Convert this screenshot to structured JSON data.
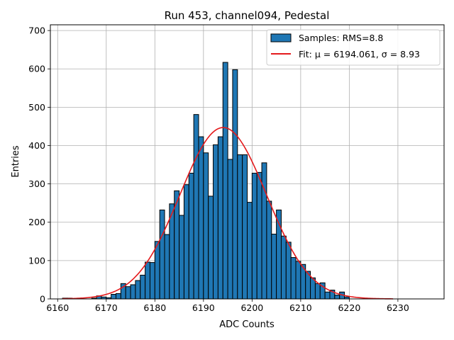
{
  "chart_data": {
    "type": "bar",
    "title": "Run 453, channel094, Pedestal",
    "xlabel": "ADC Counts",
    "ylabel": "Entries",
    "xlim": [
      6158.5,
      6239.5
    ],
    "ylim": [
      0,
      715
    ],
    "xticks": [
      6160,
      6170,
      6180,
      6190,
      6200,
      6210,
      6220,
      6230
    ],
    "yticks": [
      0,
      100,
      200,
      300,
      400,
      500,
      600,
      700
    ],
    "grid": true,
    "bin_width": 1,
    "bar_color": "#1f77b4",
    "fit_color": "#e41a1c",
    "legend": {
      "position": "top-right",
      "hist_label": "Samples: RMS=8.8",
      "fit_label": "Fit: μ = 6194.061, σ = 8.93"
    },
    "series": [
      {
        "name": "Samples: RMS=8.8",
        "type": "histogram",
        "bin_starts": [
          6161,
          6162,
          6163,
          6164,
          6165,
          6166,
          6167,
          6168,
          6169,
          6170,
          6171,
          6172,
          6173,
          6174,
          6175,
          6176,
          6177,
          6178,
          6179,
          6180,
          6181,
          6182,
          6183,
          6184,
          6185,
          6186,
          6187,
          6188,
          6189,
          6190,
          6191,
          6192,
          6193,
          6194,
          6195,
          6196,
          6197,
          6198,
          6199,
          6200,
          6201,
          6202,
          6203,
          6204,
          6205,
          6206,
          6207,
          6208,
          6209,
          6210,
          6211,
          6212,
          6213,
          6214,
          6215,
          6216,
          6217,
          6218,
          6219,
          6220,
          6221,
          6222,
          6223,
          6224,
          6225,
          6226,
          6227,
          6228
        ],
        "values": [
          2,
          2,
          0,
          0,
          0,
          0,
          2,
          8,
          5,
          3,
          12,
          14,
          40,
          32,
          37,
          48,
          62,
          96,
          95,
          150,
          232,
          168,
          248,
          282,
          218,
          298,
          328,
          481,
          423,
          381,
          268,
          402,
          423,
          617,
          364,
          598,
          376,
          376,
          252,
          328,
          330,
          355,
          255,
          169,
          232,
          164,
          148,
          108,
          98,
          90,
          72,
          55,
          40,
          42,
          18,
          23,
          10,
          18,
          5,
          0,
          0,
          0,
          0,
          0,
          0,
          0,
          0,
          0
        ]
      },
      {
        "name": "Fit: μ = 6194.061, σ = 8.93",
        "type": "gaussian",
        "mu": 6194.061,
        "sigma": 8.93,
        "amplitude": 447,
        "x_range": [
          6161,
          6229
        ]
      }
    ]
  }
}
